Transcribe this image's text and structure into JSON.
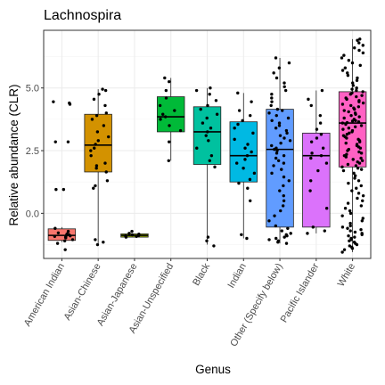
{
  "chart_data": {
    "type": "box",
    "title": "Lachnospira",
    "xlabel": "Genus",
    "ylabel": "Relative abundance (CLR)",
    "ylim": [
      -1.8,
      7.3
    ],
    "yticks": [
      0.0,
      2.5,
      5.0
    ],
    "ytick_labels": [
      "0.0",
      "2.5",
      "5.0"
    ],
    "grid": true,
    "legend": "none",
    "categories": [
      "American Indian",
      "Asian-Chinese",
      "Asian-Japanese",
      "Asian-Unspecified",
      "Black",
      "Indian",
      "Other (Specify below)",
      "Pacific Islander",
      "White"
    ],
    "colors": [
      "#F8766D",
      "#D39200",
      "#93AA00",
      "#00BA38",
      "#00C19F",
      "#00B9E3",
      "#619CFF",
      "#DB72FB",
      "#FF61C3"
    ],
    "boxes": [
      {
        "q1": -1.08,
        "median": -0.88,
        "q3": -0.62,
        "whisker_low": -1.15,
        "whisker_high": -0.55
      },
      {
        "q1": 1.65,
        "median": 2.72,
        "q3": 3.95,
        "whisker_low": -1.25,
        "whisker_high": 4.95
      },
      {
        "q1": -0.95,
        "median": -0.88,
        "q3": -0.82,
        "whisker_low": -0.95,
        "whisker_high": -0.82
      },
      {
        "q1": 3.25,
        "median": 3.85,
        "q3": 4.65,
        "whisker_low": 2.1,
        "whisker_high": 5.4
      },
      {
        "q1": 1.95,
        "median": 3.25,
        "q3": 4.25,
        "whisker_low": -1.25,
        "whisker_high": 5.0
      },
      {
        "q1": 1.25,
        "median": 2.3,
        "q3": 3.65,
        "whisker_low": -1.0,
        "whisker_high": 4.8
      },
      {
        "q1": -0.55,
        "median": 2.55,
        "q3": 4.15,
        "whisker_low": -1.2,
        "whisker_high": 6.2
      },
      {
        "q1": -0.55,
        "median": 2.3,
        "q3": 3.2,
        "whisker_low": -0.8,
        "whisker_high": 4.9
      },
      {
        "q1": 1.85,
        "median": 3.6,
        "q3": 4.85,
        "whisker_low": -1.55,
        "whisker_high": 6.95
      }
    ],
    "points": [
      [
        -1.45,
        -1.2,
        -1.1,
        -1.05,
        -0.98,
        -0.95,
        -0.92,
        -0.9,
        -0.88,
        -0.85,
        -0.82,
        -0.78,
        -0.72,
        -0.6,
        0.95,
        0.95,
        2.85,
        2.85,
        4.35,
        4.4,
        4.45
      ],
      [
        -1.25,
        -1.15,
        -1.05,
        1.0,
        1.1,
        1.3,
        1.65,
        1.8,
        1.9,
        2.0,
        2.3,
        2.5,
        2.6,
        2.75,
        2.9,
        3.05,
        3.25,
        3.5,
        3.75,
        3.9,
        4.0,
        4.3,
        4.55,
        4.75,
        4.9,
        4.95
      ],
      [
        -0.95,
        -0.92,
        -0.9,
        -0.88,
        -0.86,
        -0.83,
        -0.8,
        -0.72
      ],
      [
        2.1,
        2.85,
        3.3,
        3.5,
        3.75,
        3.85,
        3.95,
        4.1,
        4.3,
        4.6,
        4.9,
        5.25,
        5.4
      ],
      [
        -1.3,
        -1.1,
        -0.95,
        1.85,
        2.1,
        2.3,
        2.6,
        2.9,
        3.1,
        3.25,
        3.4,
        3.6,
        3.8,
        3.95,
        4.15,
        4.3,
        4.5,
        4.75,
        4.9,
        5.0
      ],
      [
        -1.0,
        -0.85,
        0.5,
        1.0,
        1.2,
        1.35,
        1.6,
        1.8,
        2.0,
        2.15,
        2.3,
        2.45,
        2.6,
        2.75,
        2.95,
        3.2,
        3.4,
        3.55,
        3.7,
        3.9,
        4.1,
        4.45,
        4.8
      ],
      [
        -1.2,
        -1.15,
        -1.1,
        -1.05,
        -1.0,
        -0.95,
        -0.9,
        -0.85,
        -0.8,
        -0.7,
        -0.6,
        -0.5,
        -0.3,
        -0.1,
        0.1,
        0.3,
        0.5,
        0.7,
        0.9,
        1.1,
        1.3,
        1.45,
        1.6,
        1.75,
        1.9,
        2.0,
        2.1,
        2.2,
        2.3,
        2.4,
        2.5,
        2.55,
        2.6,
        2.7,
        2.8,
        2.9,
        3.0,
        3.1,
        3.2,
        3.3,
        3.4,
        3.5,
        3.6,
        3.7,
        3.8,
        3.9,
        4.0,
        4.1,
        4.15,
        4.3,
        4.45,
        4.6,
        4.75,
        4.9,
        5.05,
        5.2,
        5.4,
        5.6,
        5.8,
        6.0,
        6.2
      ],
      [
        -0.8,
        -0.7,
        -0.55,
        0.2,
        0.9,
        1.3,
        1.7,
        2.0,
        2.2,
        2.3,
        2.4,
        2.6,
        2.85,
        3.0,
        3.15,
        3.35,
        3.6,
        3.9,
        4.3,
        4.55,
        4.9
      ],
      [
        -1.55,
        -1.45,
        -1.4,
        -1.35,
        -1.3,
        -1.25,
        -1.2,
        -1.15,
        -1.1,
        -1.05,
        -1.0,
        -0.95,
        -0.9,
        -0.85,
        -0.8,
        -0.75,
        -0.7,
        -0.65,
        -0.6,
        -0.55,
        -0.5,
        -0.4,
        -0.3,
        -0.2,
        -0.1,
        0.0,
        0.1,
        0.2,
        0.3,
        0.4,
        0.5,
        0.6,
        0.7,
        0.8,
        0.9,
        1.0,
        1.1,
        1.2,
        1.3,
        1.4,
        1.5,
        1.6,
        1.7,
        1.75,
        1.8,
        1.85,
        1.9,
        1.95,
        2.0,
        2.05,
        2.1,
        2.15,
        2.2,
        2.25,
        2.3,
        2.35,
        2.4,
        2.45,
        2.5,
        2.55,
        2.6,
        2.65,
        2.7,
        2.75,
        2.8,
        2.85,
        2.9,
        2.95,
        3.0,
        3.05,
        3.1,
        3.15,
        3.2,
        3.25,
        3.3,
        3.35,
        3.4,
        3.45,
        3.5,
        3.55,
        3.6,
        3.62,
        3.65,
        3.68,
        3.7,
        3.75,
        3.8,
        3.85,
        3.9,
        3.95,
        4.0,
        4.05,
        4.1,
        4.15,
        4.2,
        4.25,
        4.3,
        4.35,
        4.4,
        4.45,
        4.5,
        4.55,
        4.6,
        4.65,
        4.7,
        4.75,
        4.8,
        4.85,
        4.9,
        4.95,
        5.0,
        5.1,
        5.2,
        5.3,
        5.4,
        5.5,
        5.6,
        5.7,
        5.8,
        5.9,
        6.0,
        6.1,
        6.2,
        6.3,
        6.4,
        6.5,
        6.6,
        6.7,
        6.8,
        6.9,
        6.95
      ]
    ]
  }
}
